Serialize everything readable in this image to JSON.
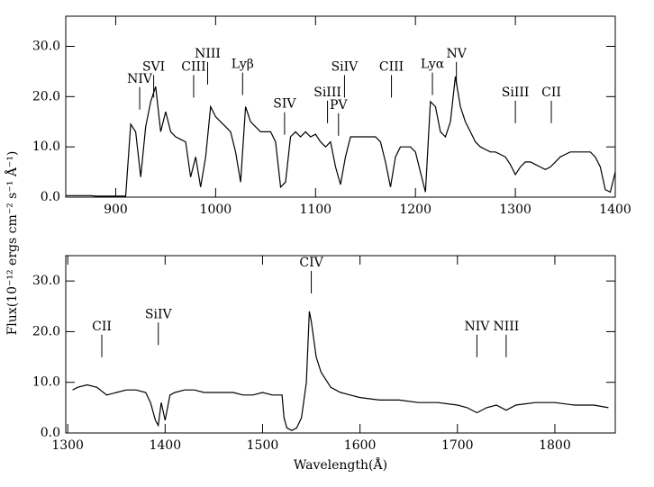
{
  "ylabel": "Flux(10⁻¹² ergs cm⁻² s⁻¹ Å⁻¹)",
  "chart_data": [
    {
      "type": "line",
      "color": "#000000",
      "xlim": [
        850,
        1400
      ],
      "ylim": [
        0,
        36
      ],
      "xticks": [
        900,
        1000,
        1100,
        1200,
        1300,
        1400
      ],
      "yticks": [
        {
          "value": 0,
          "label": "0.0"
        },
        {
          "value": 10,
          "label": "10.0"
        },
        {
          "value": 20,
          "label": "20.0"
        },
        {
          "value": 30,
          "label": "30.0"
        }
      ],
      "x": [
        850,
        855,
        860,
        865,
        870,
        875,
        880,
        885,
        890,
        895,
        900,
        905,
        910,
        915,
        920,
        925,
        930,
        935,
        940,
        945,
        950,
        955,
        960,
        965,
        970,
        975,
        980,
        985,
        990,
        995,
        1000,
        1005,
        1010,
        1015,
        1020,
        1025,
        1030,
        1035,
        1040,
        1045,
        1050,
        1055,
        1060,
        1065,
        1070,
        1075,
        1080,
        1085,
        1090,
        1095,
        1100,
        1105,
        1110,
        1115,
        1120,
        1125,
        1130,
        1135,
        1140,
        1145,
        1150,
        1155,
        1160,
        1165,
        1170,
        1175,
        1180,
        1185,
        1190,
        1195,
        1200,
        1205,
        1210,
        1215,
        1220,
        1225,
        1230,
        1235,
        1240,
        1245,
        1250,
        1255,
        1260,
        1265,
        1270,
        1275,
        1280,
        1285,
        1290,
        1295,
        1300,
        1305,
        1310,
        1315,
        1320,
        1325,
        1330,
        1335,
        1340,
        1345,
        1350,
        1355,
        1360,
        1365,
        1370,
        1375,
        1380,
        1385,
        1390,
        1395,
        1400
      ],
      "values": [
        0.3,
        0.3,
        0.3,
        0.3,
        0.3,
        0.3,
        0.2,
        0.2,
        0.2,
        0.2,
        0.2,
        0.2,
        0.2,
        14.5,
        13,
        4,
        14,
        19,
        22,
        13,
        17,
        13,
        12,
        11.5,
        11,
        4,
        8,
        2,
        8,
        18,
        16,
        15,
        14,
        13,
        9,
        3,
        18,
        15,
        14,
        13,
        13,
        13,
        11,
        2,
        3,
        12,
        13,
        12,
        13,
        12,
        12.5,
        11,
        10,
        11,
        6,
        2.5,
        8,
        12,
        12,
        12,
        12,
        12,
        12,
        11,
        7,
        2,
        8,
        10,
        10,
        10,
        9,
        5,
        1,
        19,
        18,
        13,
        12,
        15,
        24,
        18,
        15,
        13,
        11,
        10,
        9.5,
        9,
        9,
        8.5,
        8,
        6.5,
        4.5,
        6,
        7,
        7,
        6.5,
        6,
        5.5,
        6,
        7,
        8,
        8.5,
        9,
        9,
        9,
        9,
        9,
        8,
        6,
        1.5,
        1,
        5
      ],
      "annotations": [
        {
          "text": "NIV",
          "x": 924,
          "y": 23.5
        },
        {
          "text": "SVI",
          "x": 938,
          "y": 25.9
        },
        {
          "text": "CIII",
          "x": 978,
          "y": 25.9
        },
        {
          "text": "NIII",
          "x": 992,
          "y": 28.5
        },
        {
          "text": "Lyβ",
          "x": 1027,
          "y": 26.4
        },
        {
          "text": "SIV",
          "x": 1069,
          "y": 18.5
        },
        {
          "text": "SiIII",
          "x": 1112,
          "y": 20.8
        },
        {
          "text": "PV",
          "x": 1123,
          "y": 18.3
        },
        {
          "text": "SiIV",
          "x": 1129,
          "y": 25.9
        },
        {
          "text": "CIII",
          "x": 1176,
          "y": 25.9
        },
        {
          "text": "Lyα",
          "x": 1217,
          "y": 26.4
        },
        {
          "text": "NV",
          "x": 1241,
          "y": 28.5
        },
        {
          "text": "SiIII",
          "x": 1300,
          "y": 20.8
        },
        {
          "text": "CII",
          "x": 1336,
          "y": 20.8
        }
      ]
    },
    {
      "type": "line",
      "color": "#000000",
      "xlabel": "Wavelength(Å)",
      "xlim": [
        1298,
        1862
      ],
      "ylim": [
        0,
        35
      ],
      "xticks": [
        1300,
        1400,
        1500,
        1600,
        1700,
        1800
      ],
      "yticks": [
        {
          "value": 0,
          "label": "0.0"
        },
        {
          "value": 10,
          "label": "10.0"
        },
        {
          "value": 20,
          "label": "20.0"
        },
        {
          "value": 30,
          "label": "30.0"
        }
      ],
      "x": [
        1305,
        1310,
        1320,
        1330,
        1340,
        1350,
        1360,
        1370,
        1380,
        1385,
        1390,
        1393,
        1396,
        1400,
        1405,
        1410,
        1420,
        1430,
        1440,
        1450,
        1460,
        1470,
        1480,
        1490,
        1500,
        1510,
        1520,
        1522,
        1525,
        1530,
        1535,
        1540,
        1545,
        1548,
        1550,
        1555,
        1560,
        1570,
        1580,
        1590,
        1600,
        1620,
        1640,
        1660,
        1680,
        1700,
        1710,
        1720,
        1730,
        1740,
        1750,
        1760,
        1780,
        1800,
        1820,
        1840,
        1855
      ],
      "values": [
        8.5,
        9,
        9.5,
        9,
        7.5,
        8,
        8.5,
        8.5,
        8,
        6,
        2.5,
        1.5,
        6,
        2.5,
        7.5,
        8,
        8.5,
        8.5,
        8,
        8,
        8,
        8,
        7.5,
        7.5,
        8,
        7.5,
        7.5,
        3,
        1,
        0.5,
        1,
        3,
        10,
        24,
        22,
        15,
        12,
        9,
        8,
        7.5,
        7,
        6.5,
        6.5,
        6,
        6,
        5.5,
        5,
        4,
        5,
        5.5,
        4.5,
        5.5,
        6,
        6,
        5.5,
        5.5,
        5
      ],
      "annotations": [
        {
          "text": "CII",
          "x": 1335,
          "y": 21
        },
        {
          "text": "SiIV",
          "x": 1393,
          "y": 23.4
        },
        {
          "text": "CIV",
          "x": 1550,
          "y": 33.6
        },
        {
          "text": "NIV",
          "x": 1720,
          "y": 21
        },
        {
          "text": "NIII",
          "x": 1750,
          "y": 21
        }
      ]
    }
  ]
}
